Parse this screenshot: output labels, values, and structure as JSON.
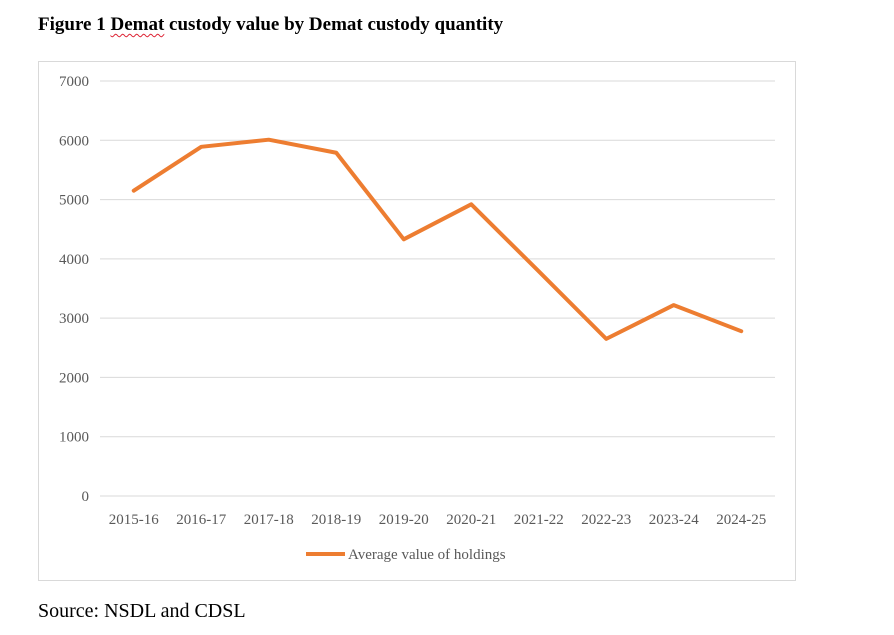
{
  "figure": {
    "title_prefix": "Figure 1 ",
    "title_flagged_word": "Demat",
    "title_suffix": " custody value by Demat custody quantity"
  },
  "source": "Source: NSDL and CDSL",
  "chart_data": {
    "type": "line",
    "title": "",
    "xlabel": "",
    "ylabel": "",
    "ylim": [
      0,
      7000
    ],
    "yticks": [
      "0",
      "1000",
      "2000",
      "3000",
      "4000",
      "5000",
      "6000",
      "7000"
    ],
    "categories": [
      "2015-16",
      "2016-17",
      "2017-18",
      "2018-19",
      "2019-20",
      "2020-21",
      "2021-22",
      "2022-23",
      "2023-24",
      "2024-25"
    ],
    "series": [
      {
        "name": "Average value of holdings",
        "color": "#ed7d31",
        "values": [
          5150,
          5890,
          6010,
          5790,
          4330,
          4920,
          3790,
          2650,
          3220,
          2780
        ]
      }
    ],
    "grid": true,
    "legend": "bottom"
  }
}
